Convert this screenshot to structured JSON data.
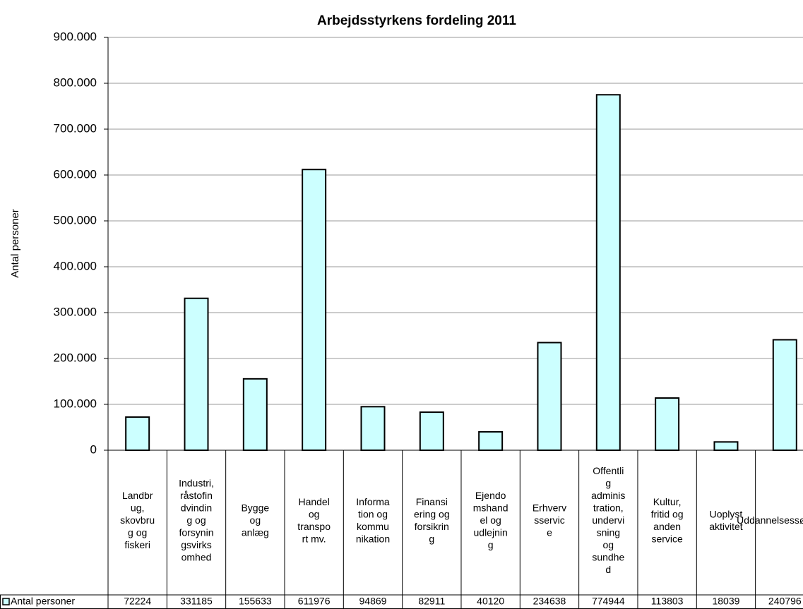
{
  "chart_data": {
    "type": "bar",
    "title": "Arbejdsstyrkens fordeling 2011",
    "y_label": "Antal personer",
    "categories": [
      [
        "Landbr",
        "ug,",
        "skovbru",
        "g og",
        "fiskeri"
      ],
      [
        "Industri,",
        "råstofin",
        "dvindin",
        "g og",
        "forsynin",
        "gsvirks",
        "omhed"
      ],
      [
        "Bygge",
        "og",
        "anlæg"
      ],
      [
        "Handel",
        "og",
        "transpo",
        "rt mv."
      ],
      [
        "Informa",
        "tion og",
        "kommu",
        "nikation"
      ],
      [
        "Finansi",
        "ering og",
        "forsikrin",
        "g"
      ],
      [
        "Ejendo",
        "mshand",
        "el og",
        "udlejnin",
        "g"
      ],
      [
        "Erhverv",
        "sservic",
        "e"
      ],
      [
        "Offentli",
        "g",
        "adminis",
        "tration,",
        "undervi",
        "sning",
        "og",
        "sundhe",
        "d"
      ],
      [
        "Kultur,",
        "fritid og",
        "anden",
        "service"
      ],
      [
        "Uoplyst",
        "aktivitet"
      ],
      [
        "Uddannelsessøgende"
      ]
    ],
    "series": [
      {
        "name": "Antal personer",
        "color": "#ccffff",
        "values": [
          72224,
          331185,
          155633,
          611976,
          94869,
          82911,
          40120,
          234638,
          774944,
          113803,
          18039,
          240796
        ]
      }
    ],
    "ylim": [
      0,
      900000
    ],
    "yticks": [
      0,
      {
        "value": 100000,
        "label": "100.000"
      },
      {
        "value": 200000,
        "label": "200.000"
      },
      {
        "value": 300000,
        "label": "300.000"
      },
      {
        "value": 400000,
        "label": "400.000"
      },
      {
        "value": 500000,
        "label": "500.000"
      },
      {
        "value": 600000,
        "label": "600.000"
      },
      {
        "value": 700000,
        "label": "700.000"
      },
      {
        "value": 800000,
        "label": "800.000"
      },
      {
        "value": 900000,
        "label": "900.000"
      }
    ],
    "grid": true,
    "data_table": true
  }
}
